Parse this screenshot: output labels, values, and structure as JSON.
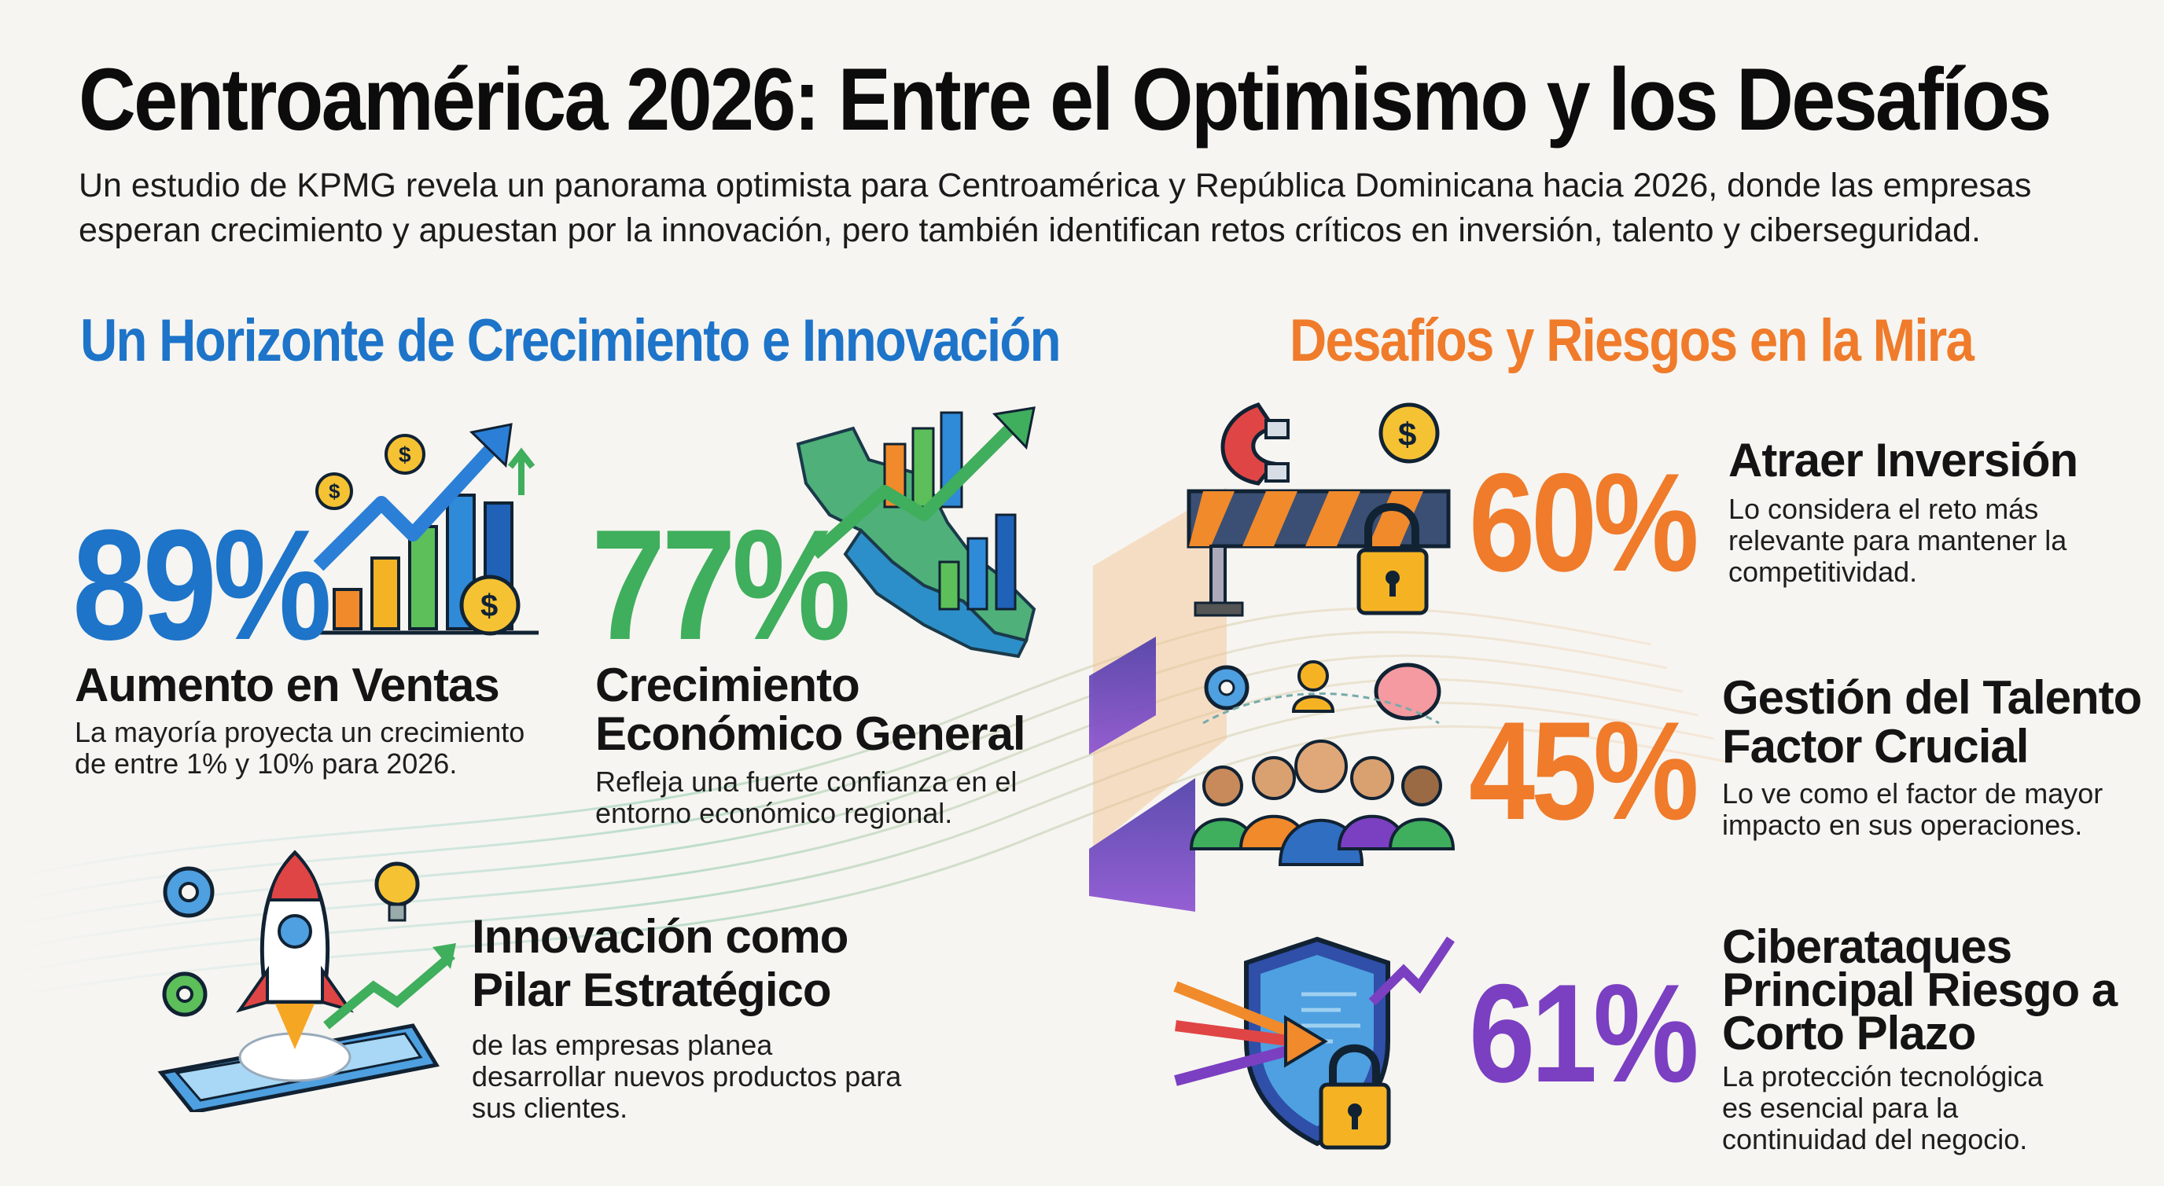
{
  "header": {
    "title": "Centroamérica 2026: Entre el Optimismo y los Desafíos",
    "subtitle": "Un estudio de KPMG revela un panorama optimista para Centroamérica y República Dominicana hacia 2026, donde las empresas esperan crecimiento y apuestan por la innovación, pero también identifican retos críticos en inversión, talento y ciberseguridad."
  },
  "growth": {
    "heading": "Un Horizonte de Crecimiento e Innovación",
    "sales": {
      "value": "89%",
      "title": "Aumento en Ventas",
      "description": "La mayoría proyecta un crecimiento de entre 1% y 10% para 2026."
    },
    "economy": {
      "value": "77%",
      "title_line1": "Crecimiento",
      "title_line2": "Económico General",
      "description": "Refleja una fuerte confianza en el entorno económico regional."
    },
    "innovation": {
      "title_line1": "Innovación como",
      "title_line2": "Pilar Estratégico",
      "description": "de las empresas planea desarrollar nuevos productos para sus clientes."
    }
  },
  "risks": {
    "heading": "Desafíos y Riesgos en la Mira",
    "investment": {
      "value": "60%",
      "title": "Atraer Inversión",
      "description": "Lo considera el reto más relevante para mantener la competitividad."
    },
    "talent": {
      "value": "45%",
      "title_line1": "Gestión del Talento",
      "title_line2": "Factor Crucial",
      "description": "Lo ve como el factor de mayor impacto en sus operaciones."
    },
    "cyber": {
      "value": "61%",
      "title_line1": "Ciberataques",
      "title_line2": "Principal Riesgo a",
      "title_line3": "Corto Plazo",
      "description": "La protección tecnológica es esencial para la continuidad del negocio."
    }
  },
  "colors": {
    "blue": "#1d74c9",
    "green": "#3fae5d",
    "orange": "#ef7b2b",
    "purple": "#7b3fc2"
  },
  "icons": [
    "growth-chart-icon",
    "central-america-map-icon",
    "rocket-launch-icon",
    "magnet-barrier-icon",
    "team-network-icon",
    "cyber-shield-icon"
  ]
}
